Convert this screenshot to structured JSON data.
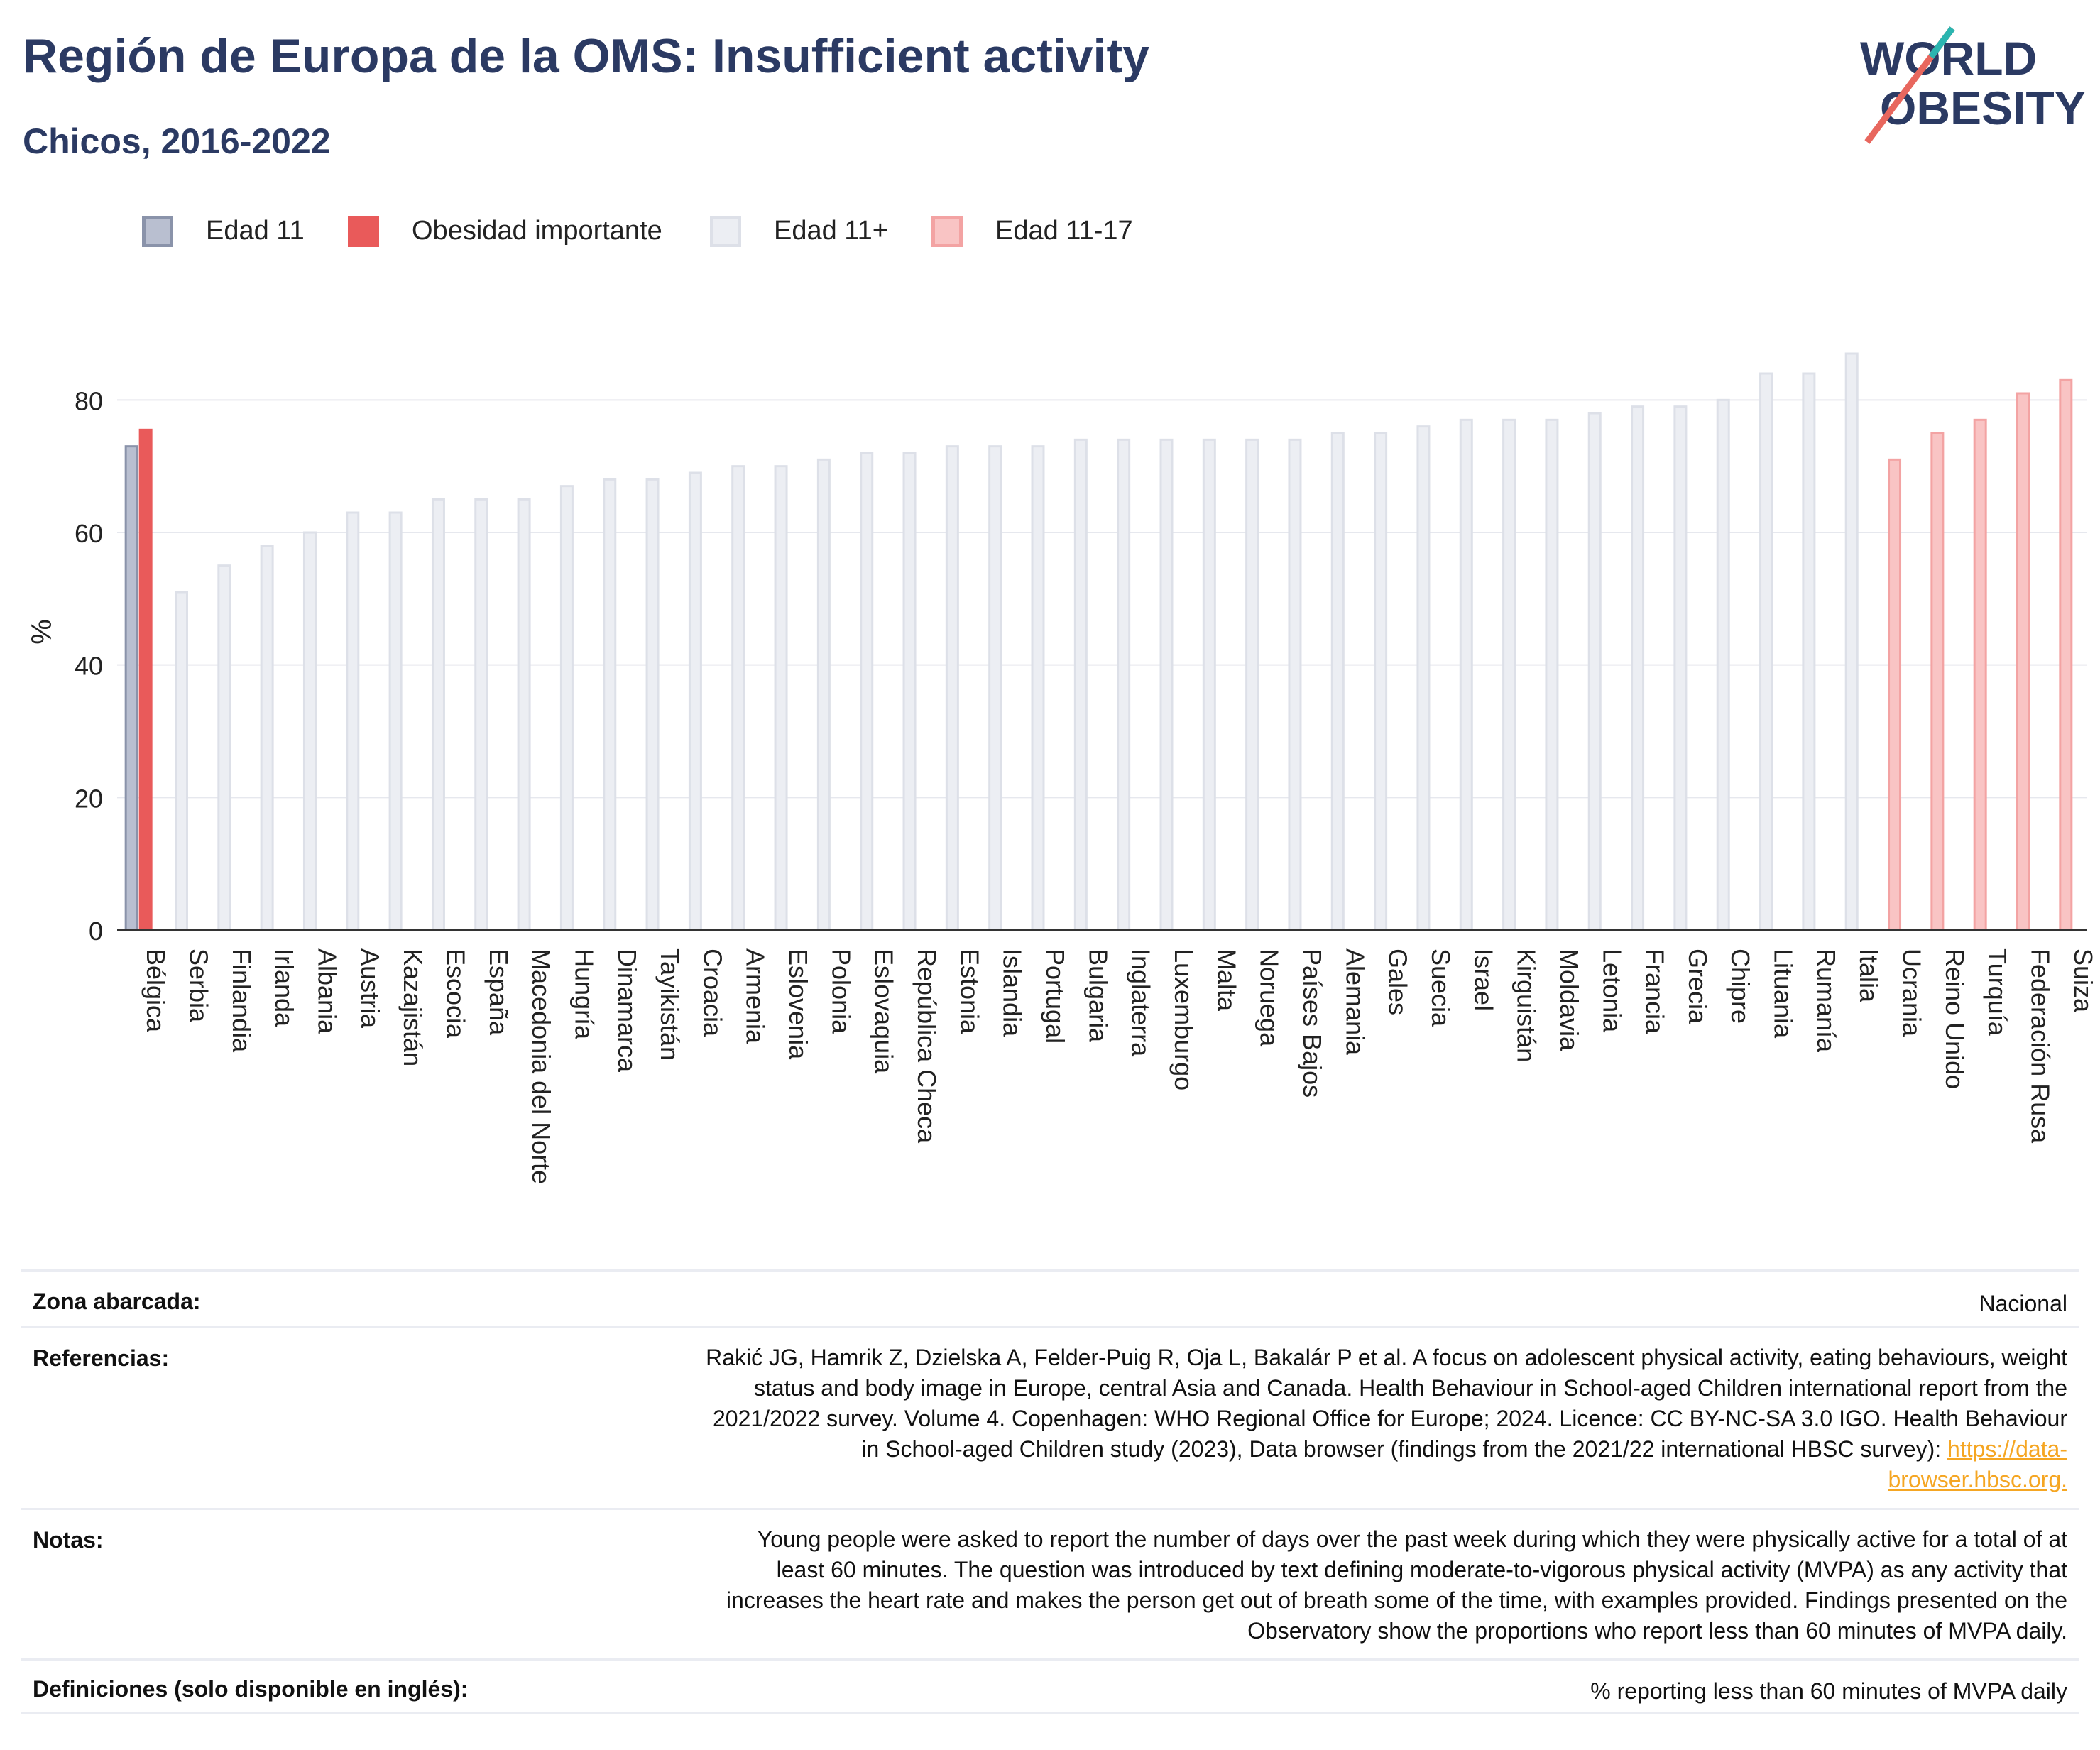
{
  "header": {
    "title": "Región de Europa de la OMS: Insufficient activity",
    "subtitle": "Chicos, 2016-2022"
  },
  "logo": {
    "line1": "WORLD",
    "line2": "OBESITY",
    "accent": "#e8675e",
    "accent2": "#2bb5b0",
    "text_color": "#2b3a63"
  },
  "legend": [
    {
      "label": "Edad 11",
      "fill": "#b9bfd0",
      "stroke": "#8a93aa"
    },
    {
      "label": "Obesidad importante",
      "fill": "#e95a5a",
      "stroke": "#e95a5a"
    },
    {
      "label": "Edad 11+",
      "fill": "#eceef3",
      "stroke": "#dde0e8"
    },
    {
      "label": "Edad 11-17",
      "fill": "#f9c4c4",
      "stroke": "#f3a3a3"
    }
  ],
  "chart_data": {
    "type": "bar",
    "title": "Región de Europa de la OMS: Insufficient activity",
    "subtitle": "Chicos, 2016-2022",
    "ylabel": "%",
    "ylim": [
      0,
      90
    ],
    "yticks": [
      0,
      20,
      40,
      60,
      80
    ],
    "grid": true,
    "legend_position": "top-left",
    "categories": [
      "Bélgica",
      "Serbia",
      "Finlandia",
      "Irlanda",
      "Albania",
      "Austria",
      "Kazajistán",
      "Escocia",
      "España",
      "Macedonia del Norte",
      "Hungría",
      "Dinamarca",
      "Tayikistán",
      "Croacia",
      "Armenia",
      "Eslovenia",
      "Polonia",
      "Eslovaquia",
      "República Checa",
      "Estonia",
      "Islandia",
      "Portugal",
      "Bulgaria",
      "Inglaterra",
      "Luxemburgo",
      "Malta",
      "Noruega",
      "Países Bajos",
      "Alemania",
      "Gales",
      "Suecia",
      "Israel",
      "Kirguistán",
      "Moldavia",
      "Letonia",
      "Francia",
      "Grecia",
      "Chipre",
      "Lituania",
      "Rumanía",
      "Italia",
      "Ucrania",
      "Reino Unido",
      "Turquía",
      "Federación Rusa",
      "Suiza"
    ],
    "series": [
      {
        "name": "Edad 11",
        "values": [
          73,
          null,
          null,
          null,
          null,
          null,
          null,
          null,
          null,
          null,
          null,
          null,
          null,
          null,
          null,
          null,
          null,
          null,
          null,
          null,
          null,
          null,
          null,
          null,
          null,
          null,
          null,
          null,
          null,
          null,
          null,
          null,
          null,
          null,
          null,
          null,
          null,
          null,
          null,
          null,
          null,
          null,
          null,
          null,
          null,
          null
        ]
      },
      {
        "name": "Obesidad importante",
        "values": [
          75.5,
          null,
          null,
          null,
          null,
          null,
          null,
          null,
          null,
          null,
          null,
          null,
          null,
          null,
          null,
          null,
          null,
          null,
          null,
          null,
          null,
          null,
          null,
          null,
          null,
          null,
          null,
          null,
          null,
          null,
          null,
          null,
          null,
          null,
          null,
          null,
          null,
          null,
          null,
          null,
          null,
          null,
          null,
          null,
          null,
          null
        ]
      },
      {
        "name": "Edad 11+",
        "values": [
          null,
          51,
          55,
          58,
          60,
          63,
          63,
          65,
          65,
          65,
          67,
          68,
          68,
          69,
          70,
          70,
          71,
          72,
          72,
          73,
          73,
          73,
          74,
          74,
          74,
          74,
          74,
          74,
          75,
          75,
          76,
          77,
          77,
          77,
          78,
          79,
          79,
          80,
          84,
          84,
          87,
          null,
          null,
          null,
          null,
          null
        ]
      },
      {
        "name": "Edad 11-17",
        "values": [
          null,
          null,
          null,
          null,
          null,
          null,
          null,
          null,
          null,
          null,
          null,
          null,
          null,
          null,
          null,
          null,
          null,
          null,
          null,
          null,
          null,
          null,
          null,
          null,
          null,
          null,
          null,
          null,
          null,
          null,
          null,
          null,
          null,
          null,
          null,
          null,
          null,
          null,
          null,
          null,
          null,
          71,
          75,
          77,
          81,
          83
        ]
      }
    ]
  },
  "meta": {
    "coverage_label": "Zona abarcada:",
    "coverage_value": "Nacional",
    "references_label": "Referencias:",
    "references_lines": [
      "Rakić JG, Hamrik Z, Dzielska A, Felder-Puig R, Oja L, Bakalár P et al. A focus on adolescent physical activity, eating behaviours, weight",
      "status and body image in Europe, central Asia and Canada. Health Behaviour in School-aged Children international report from the",
      "2021/2022 survey. Volume 4. Copenhagen: WHO Regional Office for Europe; 2024. Licence: CC BY-NC-SA 3.0 IGO. Health Behaviour",
      "in School-aged Children study (2023), Data browser (findings from the 2021/22 international HBSC survey):"
    ],
    "references_link_part1": "https://data-",
    "references_link_part2": "browser.hbsc.org.",
    "notes_label": "Notas:",
    "notes_lines": [
      "Young people were asked to report the number of days over the past week during which they were physically active for a total of at",
      "least 60 minutes. The question was introduced by text defining moderate-to-vigorous physical activity (MVPA) as any activity that",
      "increases the heart rate and makes the person get out of breath some of the time, with examples provided. Findings presented on the",
      "Observatory show the proportions who report less than 60 minutes of MVPA daily."
    ],
    "definitions_label": "Definiciones (solo disponible en inglés):",
    "definitions_value": "% reporting less than 60 minutes of MVPA daily"
  }
}
